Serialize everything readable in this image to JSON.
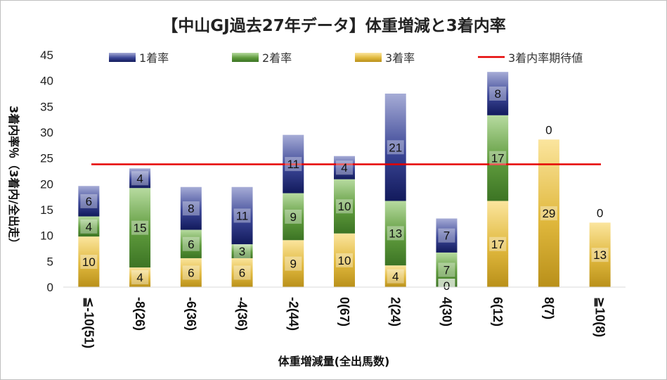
{
  "chart_data": {
    "type": "bar",
    "stacked": true,
    "title": "【中山GJ過去27年データ】体重増減と3着内率",
    "xlabel": "体重増減量(全出馬数)",
    "ylabel": "3着内率％（3着内/全出走）",
    "ylim": [
      0,
      45
    ],
    "yticks": [
      0,
      5,
      10,
      15,
      20,
      25,
      30,
      35,
      40,
      45
    ],
    "categories": [
      "≦-10(51)",
      "-8(26)",
      "-6(36)",
      "-4(36)",
      "-2(44)",
      "0(67)",
      "2(24)",
      "4(30)",
      "6(12)",
      "8(7)",
      "≧10(8)"
    ],
    "series": [
      {
        "name": "3着率",
        "values": [
          10,
          4,
          6,
          6,
          9,
          10,
          4,
          0,
          17,
          29,
          13
        ],
        "color": "#c9a227"
      },
      {
        "name": "2着率",
        "values": [
          4,
          15,
          6,
          3,
          9,
          10,
          13,
          7,
          17,
          0,
          0
        ],
        "color": "#5e9a3c"
      },
      {
        "name": "1着率",
        "values": [
          6,
          4,
          8,
          11,
          11,
          4,
          21,
          7,
          8,
          0,
          0
        ],
        "color": "#2b3580"
      }
    ],
    "bar_heights_exact": [
      [
        9.8,
        13.7,
        19.6
      ],
      [
        3.8,
        19.2,
        23.0
      ],
      [
        5.6,
        11.1,
        19.4
      ],
      [
        5.6,
        8.3,
        19.4
      ],
      [
        9.1,
        18.2,
        29.5
      ],
      [
        10.4,
        20.9,
        25.4
      ],
      [
        4.2,
        16.7,
        37.5
      ],
      [
        0.0,
        6.7,
        13.3
      ],
      [
        16.7,
        33.3,
        41.7
      ],
      [
        28.6,
        28.6,
        28.6
      ],
      [
        12.5,
        12.5,
        12.5
      ]
    ],
    "reference_line": {
      "name": "3着内率期待値",
      "value": 23.8,
      "color": "#e60000"
    },
    "legend": [
      "1着率",
      "2着率",
      "3着率",
      "3着内率期待値"
    ],
    "legend_position": "top"
  }
}
